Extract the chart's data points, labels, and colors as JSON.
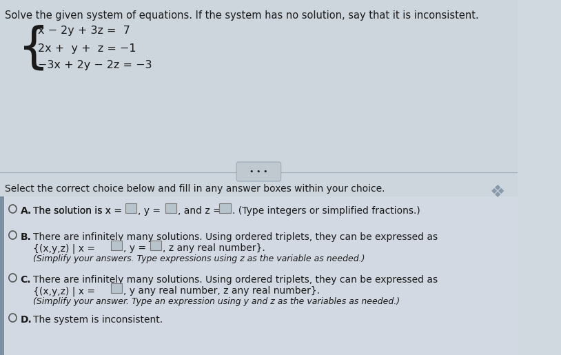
{
  "bg_color": "#d0d8e0",
  "top_bg": "#d0d8e0",
  "bottom_bg": "#d8dfe8",
  "title": "Solve the given system of equations. If the system has no solution, say that it is inconsistent.",
  "eq1": "x − 2y + 3z =  7",
  "eq2": "2x +  y +  z = −1",
  "eq3": "−3x + 2y − 2z = −3",
  "select_text": "Select the correct choice below and fill in any answer boxes within your choice.",
  "optA_label": "A.",
  "optA_text1": "The solution is x =",
  "optA_text2": ", y =",
  "optA_text3": ", and z =",
  "optA_text4": ". (Type integers or simplified fractions.)",
  "optB_label": "B.",
  "optB_line1": "There are infinitely many solutions. Using ordered triplets, they can be expressed as",
  "optB_line2a": "{(x,y,z) | x =",
  "optB_line2b": ", y =",
  "optB_line2c": ", z any real number}.",
  "optB_line3": "(Simplify your answers. Type expressions using z as the variable as needed.)",
  "optC_label": "C.",
  "optC_line1": "There are infinitely many solutions. Using ordered triplets, they can be expressed as",
  "optC_line2a": "{(x,y,z) | x =",
  "optC_line2b": ", y any real number, z any real number}.",
  "optC_line3": "(Simplify your answer. Type an expression using y and z as the variables as needed.)",
  "optD_label": "D.",
  "optD_text": "The system is inconsistent.",
  "dots_text": "• • •",
  "title_fontsize": 10.5,
  "body_fontsize": 10,
  "small_fontsize": 9
}
